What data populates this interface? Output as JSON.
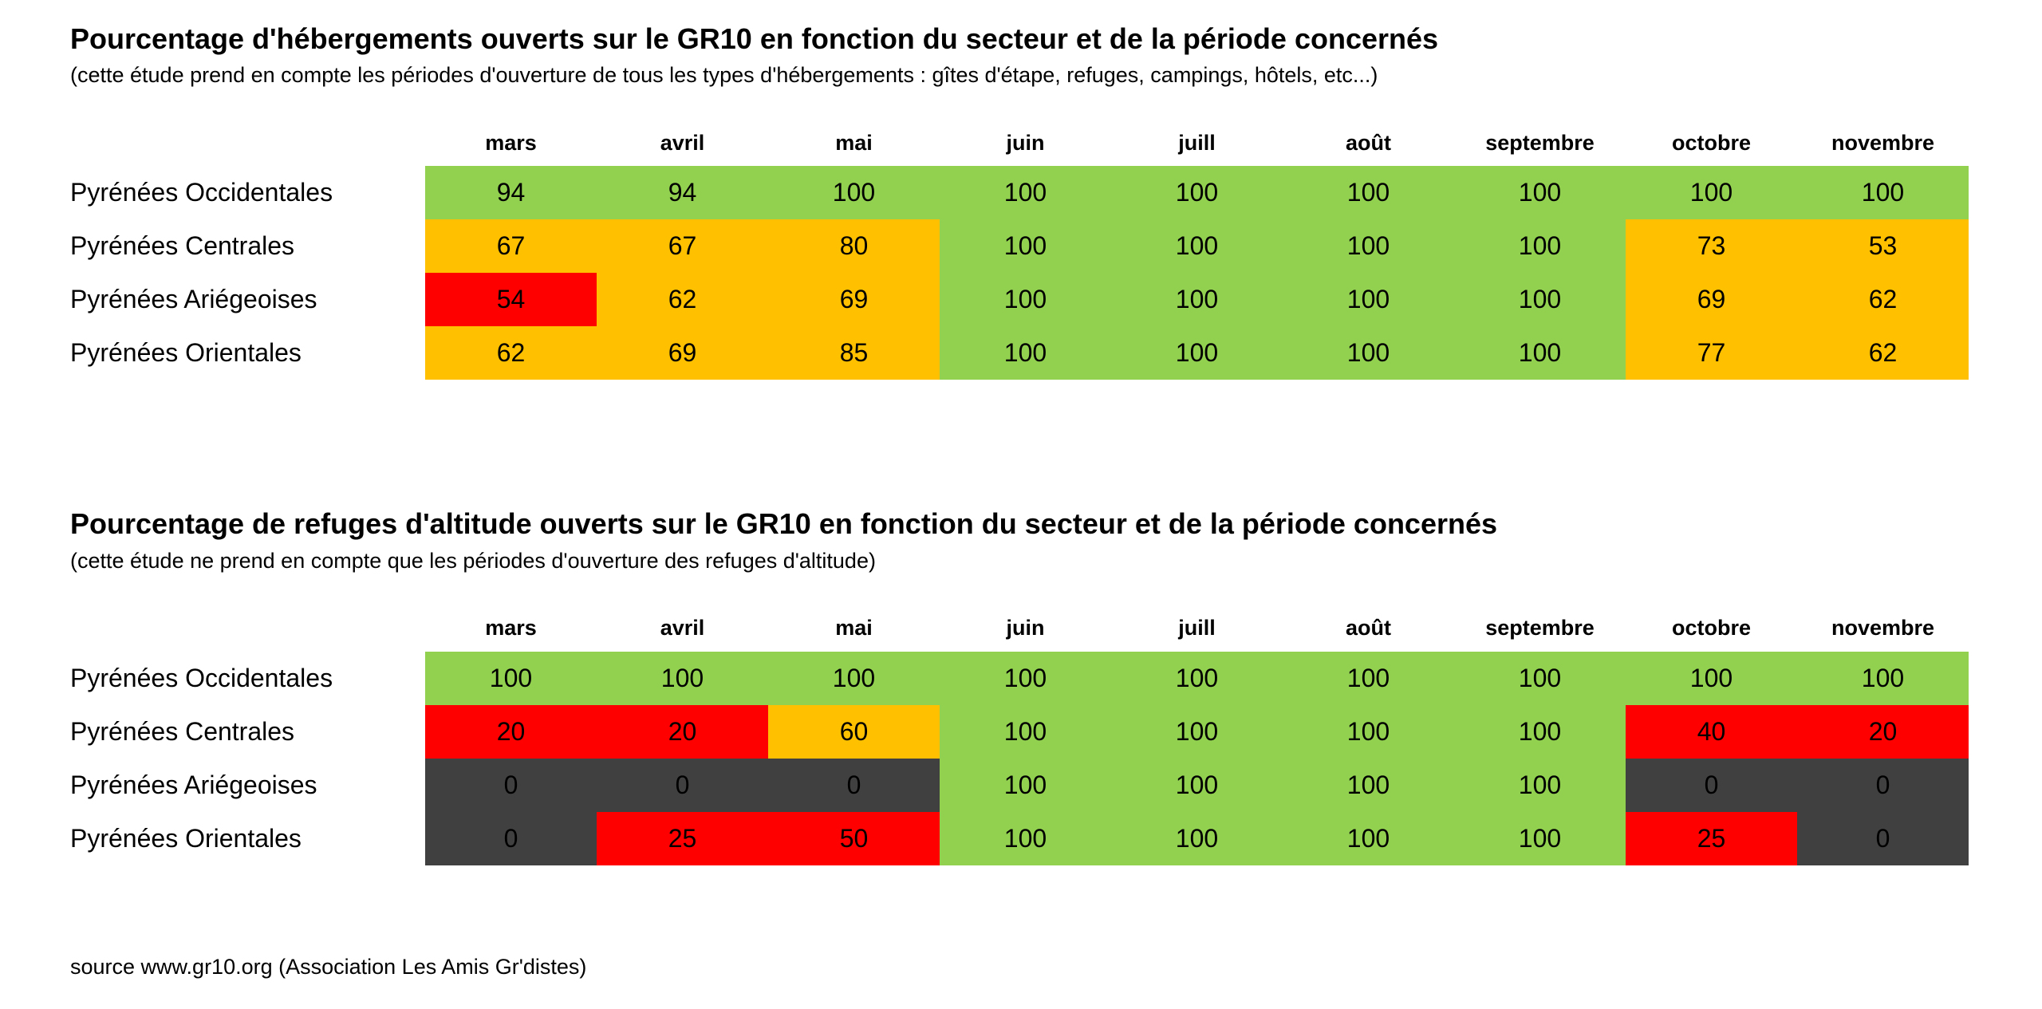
{
  "colors": {
    "green": "#92D050",
    "orange": "#FFC000",
    "red": "#FF0000",
    "dark": "#404040",
    "text": "#000000",
    "background": "#FFFFFF"
  },
  "footer": {
    "source_text": "source www.gr10.org (Association Les Amis Gr'distes)"
  },
  "chart_data": [
    {
      "type": "heatmap",
      "title": "Pourcentage d'hébergements ouverts sur le GR10 en fonction du secteur et de la période concernés",
      "subtitle": "(cette étude prend en compte les périodes d'ouverture de tous les types d'hébergements : gîtes d'étape, refuges, campings, hôtels, etc...)",
      "x": [
        "mars",
        "avril",
        "mai",
        "juin",
        "juill",
        "août",
        "septembre",
        "octobre",
        "novembre"
      ],
      "y": [
        "Pyrénées Occidentales",
        "Pyrénées Centrales",
        "Pyrénées Ariégeoises",
        "Pyrénées Orientales"
      ],
      "values": [
        [
          94,
          94,
          100,
          100,
          100,
          100,
          100,
          100,
          100
        ],
        [
          67,
          67,
          80,
          100,
          100,
          100,
          100,
          73,
          53
        ],
        [
          54,
          62,
          69,
          100,
          100,
          100,
          100,
          69,
          62
        ],
        [
          62,
          69,
          85,
          100,
          100,
          100,
          100,
          77,
          62
        ]
      ],
      "cell_colors": [
        [
          "green",
          "green",
          "green",
          "green",
          "green",
          "green",
          "green",
          "green",
          "green"
        ],
        [
          "orange",
          "orange",
          "orange",
          "green",
          "green",
          "green",
          "green",
          "orange",
          "orange"
        ],
        [
          "red",
          "orange",
          "orange",
          "green",
          "green",
          "green",
          "green",
          "orange",
          "orange"
        ],
        [
          "orange",
          "orange",
          "orange",
          "green",
          "green",
          "green",
          "green",
          "orange",
          "orange"
        ]
      ],
      "value_unit": "percent",
      "value_range": [
        0,
        100
      ],
      "legend": "none",
      "grid": "off"
    },
    {
      "type": "heatmap",
      "title": "Pourcentage de refuges d'altitude ouverts sur le GR10 en fonction du secteur et de la période concernés",
      "subtitle": "(cette étude ne prend en compte que les périodes d'ouverture des refuges d'altitude)",
      "x": [
        "mars",
        "avril",
        "mai",
        "juin",
        "juill",
        "août",
        "septembre",
        "octobre",
        "novembre"
      ],
      "y": [
        "Pyrénées Occidentales",
        "Pyrénées Centrales",
        "Pyrénées Ariégeoises",
        "Pyrénées Orientales"
      ],
      "values": [
        [
          100,
          100,
          100,
          100,
          100,
          100,
          100,
          100,
          100
        ],
        [
          20,
          20,
          60,
          100,
          100,
          100,
          100,
          40,
          20
        ],
        [
          0,
          0,
          0,
          100,
          100,
          100,
          100,
          0,
          0
        ],
        [
          0,
          25,
          50,
          100,
          100,
          100,
          100,
          25,
          0
        ]
      ],
      "cell_colors": [
        [
          "green",
          "green",
          "green",
          "green",
          "green",
          "green",
          "green",
          "green",
          "green"
        ],
        [
          "red",
          "red",
          "orange",
          "green",
          "green",
          "green",
          "green",
          "red",
          "red"
        ],
        [
          "dark",
          "dark",
          "dark",
          "green",
          "green",
          "green",
          "green",
          "dark",
          "dark"
        ],
        [
          "dark",
          "red",
          "red",
          "green",
          "green",
          "green",
          "green",
          "red",
          "dark"
        ]
      ],
      "value_unit": "percent",
      "value_range": [
        0,
        100
      ],
      "legend": "none",
      "grid": "off"
    }
  ]
}
